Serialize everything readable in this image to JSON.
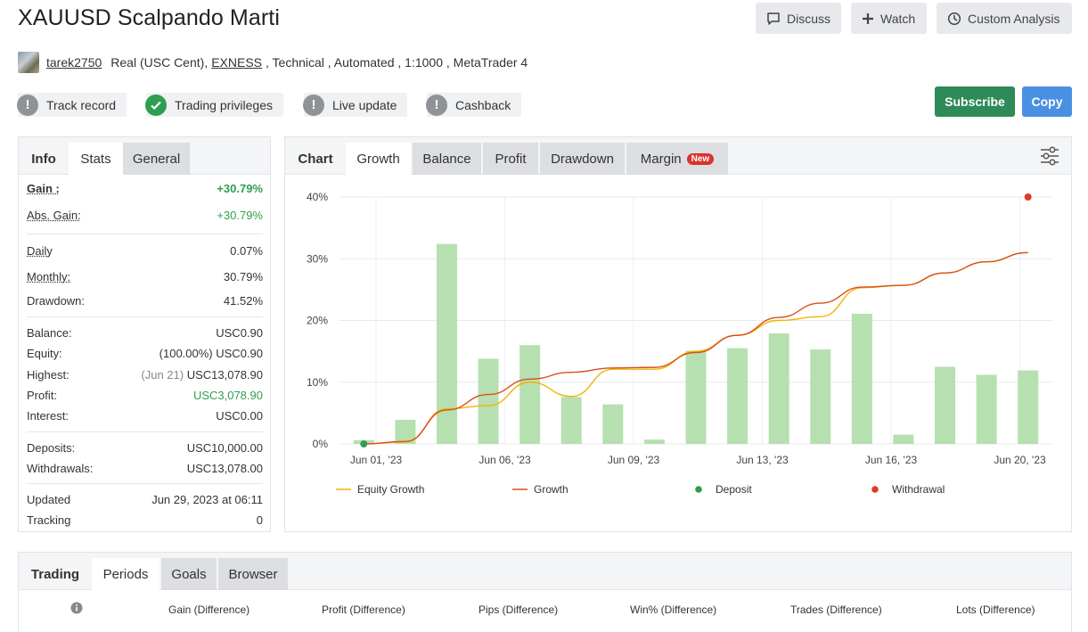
{
  "header": {
    "title": "XAUUSD Scalpando Marti",
    "discuss": "Discuss",
    "watch": "Watch",
    "custom": "Custom Analysis"
  },
  "meta": {
    "user": "tarek2750",
    "account": "Real (USC Cent),",
    "broker": "EXNESS",
    "rest": ", Technical , Automated , 1:1000 , MetaTrader 4"
  },
  "badges": [
    "Track record",
    "Trading privileges",
    "Live update",
    "Cashback"
  ],
  "actions": {
    "subscribe": "Subscribe",
    "copy": "Copy"
  },
  "left_tabs": [
    "Info",
    "Stats",
    "General"
  ],
  "stats": {
    "gain_k": "Gain :",
    "gain_v": "+30.79%",
    "abs_k": "Abs. Gain:",
    "abs_v": "+30.79%",
    "daily_k": "Daily",
    "daily_v": "0.07%",
    "monthly_k": "Monthly:",
    "monthly_v": "30.79%",
    "dd_k": "Drawdown:",
    "dd_v": "41.52%",
    "bal_k": "Balance:",
    "bal_v": "USC0.90",
    "eq_k": "Equity:",
    "eq_v": "(100.00%) USC0.90",
    "hi_k": "Highest:",
    "hi_date": "(Jun 21)",
    "hi_v": "USC13,078.90",
    "pr_k": "Profit:",
    "pr_v": "USC3,078.90",
    "int_k": "Interest:",
    "int_v": "USC0.00",
    "dep_k": "Deposits:",
    "dep_v": "USC10,000.00",
    "wd_k": "Withdrawals:",
    "wd_v": "USC13,078.00",
    "up_k": "Updated",
    "up_v": "Jun 29, 2023 at 06:11",
    "tr_k": "Tracking",
    "tr_v": "0"
  },
  "chart_tabs": {
    "head": "Chart",
    "growth": "Growth",
    "balance": "Balance",
    "profit": "Profit",
    "drawdown": "Drawdown",
    "margin": "Margin",
    "new": "New"
  },
  "chart_data": {
    "type": "bar",
    "title": "Growth",
    "ylim": [
      0,
      40
    ],
    "y_ticks": [
      "0%",
      "10%",
      "20%",
      "30%",
      "40%"
    ],
    "x_tick_labels": [
      "Jun 01, '23",
      "Jun 06, '23",
      "Jun 09, '23",
      "Jun 13, '23",
      "Jun 16, '23",
      "Jun 20, '23"
    ],
    "bars": [
      0.6,
      3.9,
      32.4,
      13.8,
      16.0,
      7.6,
      6.4,
      0.7,
      15.1,
      15.5,
      17.9,
      15.3,
      21.1,
      1.5,
      12.5,
      11.2,
      11.9
    ],
    "growth": [
      0,
      0.4,
      5.5,
      8.0,
      10.5,
      11.6,
      12.3,
      12.4,
      14.8,
      17.6,
      20.5,
      22.8,
      25.4,
      25.7,
      27.7,
      29.5,
      31.0
    ],
    "equity": [
      0,
      0.3,
      5.7,
      6.2,
      10.0,
      7.7,
      12.1,
      12.1,
      15.0,
      17.6,
      20.0,
      20.6,
      25.3,
      25.7,
      27.7,
      29.5,
      31.0
    ],
    "deposit_point": {
      "index": 0,
      "value": 0
    },
    "withdrawal_point": {
      "index": 16,
      "value": 40
    },
    "legend": [
      "Equity Growth",
      "Growth",
      "Deposit",
      "Withdrawal"
    ],
    "colors": {
      "bar": "#b6e0b0",
      "growth": "#d9501e",
      "equity": "#f2b400",
      "deposit": "#2e9e4f",
      "withdrawal": "#e0392b"
    }
  },
  "bottom": {
    "tabs": [
      "Trading",
      "Periods",
      "Goals",
      "Browser"
    ],
    "cols": [
      "Gain (Difference)",
      "Profit (Difference)",
      "Pips (Difference)",
      "Win% (Difference)",
      "Trades (Difference)",
      "Lots (Difference)"
    ]
  }
}
